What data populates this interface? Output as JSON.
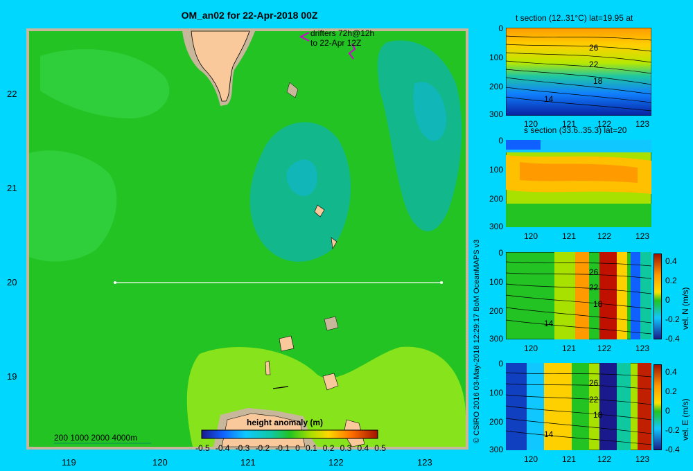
{
  "title": "OM_an02 for 22-Apr-2018 00Z",
  "drifters_label_1": "drifters 72h@12h",
  "drifters_label_2": "to 22-Apr 12Z",
  "map": {
    "lat_ticks": [
      "22",
      "21",
      "20",
      "19"
    ],
    "lon_ticks": [
      "119",
      "120",
      "121",
      "122",
      "123"
    ],
    "depth_legend": "200 1000 2000 4000m"
  },
  "colorbar": {
    "title": "height anomaly (m)",
    "labels": [
      "-0.5",
      "-0.4",
      "-0.3",
      "-0.2",
      "-0.1",
      "0",
      "0.1",
      "0.2",
      "0.3",
      "0.4",
      "0.5"
    ]
  },
  "credit": "© CSIRO 2016   03-May-2018 12:29:17 BoM OceanMAPS v3",
  "panels": [
    {
      "title": "t section (12..31°C) lat=19.95 at",
      "depth_ticks": [
        "0",
        "100",
        "200",
        "300"
      ],
      "lon_ticks": [
        "120",
        "121",
        "122",
        "123"
      ],
      "contour_labels": [
        "26",
        "22",
        "18",
        "14"
      ]
    },
    {
      "title": "s section (33.6..35.3) lat=20",
      "depth_ticks": [
        "0",
        "100",
        "200",
        "300"
      ],
      "lon_ticks": [
        "120",
        "121",
        "122",
        "123"
      ]
    },
    {
      "title": "",
      "depth_ticks": [
        "0",
        "100",
        "200",
        "300"
      ],
      "lon_ticks": [
        "120",
        "121",
        "122",
        "123"
      ],
      "contour_labels": [
        "26",
        "22",
        "18",
        "14"
      ],
      "cbar_labels": [
        "0.4",
        "0.2",
        "0",
        "-0.2",
        "-0.4"
      ],
      "cbar_title": "vel. N (m/s)"
    },
    {
      "title": "",
      "depth_ticks": [
        "0",
        "100",
        "200",
        "300"
      ],
      "lon_ticks": [
        "120",
        "121",
        "122",
        "123"
      ],
      "contour_labels": [
        "26",
        "22",
        "18",
        "14"
      ],
      "cbar_labels": [
        "0.4",
        "0.2",
        "0",
        "-0.2",
        "-0.4"
      ],
      "cbar_title": "vel. E (m/s)"
    }
  ],
  "colors": {
    "background": "#00d7ff",
    "land": "#f9c89b",
    "shelf": "#d4b896",
    "sea_mid": "#22c322",
    "sea_low": "#12b88c",
    "sea_high": "#86e31c"
  }
}
